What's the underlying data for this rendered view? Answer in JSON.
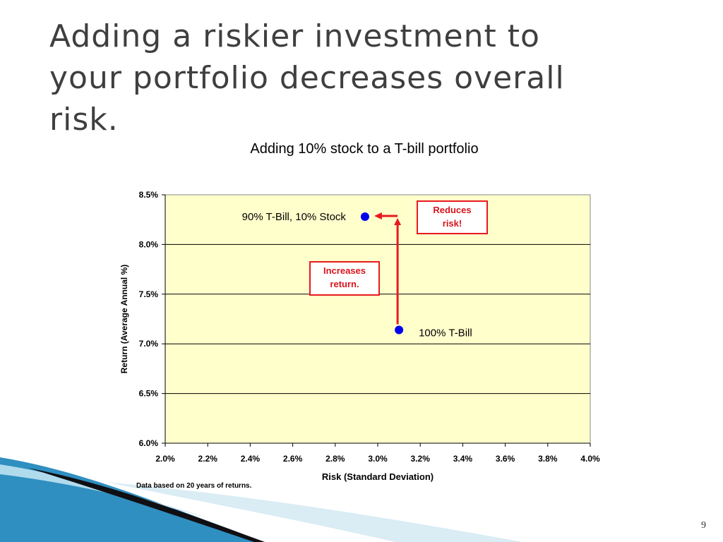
{
  "slide": {
    "title_lines": [
      "Adding a riskier investment to",
      "your portfolio decreases overall",
      "risk."
    ],
    "page_number": "9",
    "footnote": "Data based on 20 years of returns."
  },
  "colors": {
    "plot_background": "#ffffcc",
    "marker": "#0000ee",
    "arrow": "#e8191e",
    "callout_text": "#d8141c",
    "callout_border": "#e8191e",
    "title_text": "#3f3f3f",
    "decor_blue": "#2f8fc0",
    "decor_dark": "#0f0f14"
  },
  "chart_data": {
    "type": "scatter",
    "title": "Adding 10% stock to a T-bill portfolio",
    "xlabel": "Risk (Standard Deviation)",
    "ylabel": "Return (Average Annual %)",
    "xlim": [
      2.0,
      4.0
    ],
    "ylim": [
      6.0,
      8.5
    ],
    "x_ticks": [
      "2.0%",
      "2.2%",
      "2.4%",
      "2.6%",
      "2.8%",
      "3.0%",
      "3.2%",
      "3.4%",
      "3.6%",
      "3.8%",
      "4.0%"
    ],
    "y_ticks": [
      "6.0%",
      "6.5%",
      "7.0%",
      "7.5%",
      "8.0%",
      "8.5%"
    ],
    "grid": "horizontal",
    "points": [
      {
        "label": "100% T-Bill",
        "x": 3.1,
        "y": 7.14
      },
      {
        "label": "90% T-Bill, 10% Stock",
        "x": 2.94,
        "y": 8.28
      }
    ],
    "annotations": [
      {
        "lines": [
          "Increases",
          "return."
        ]
      },
      {
        "lines": [
          "Reduces",
          "risk!"
        ]
      }
    ]
  }
}
